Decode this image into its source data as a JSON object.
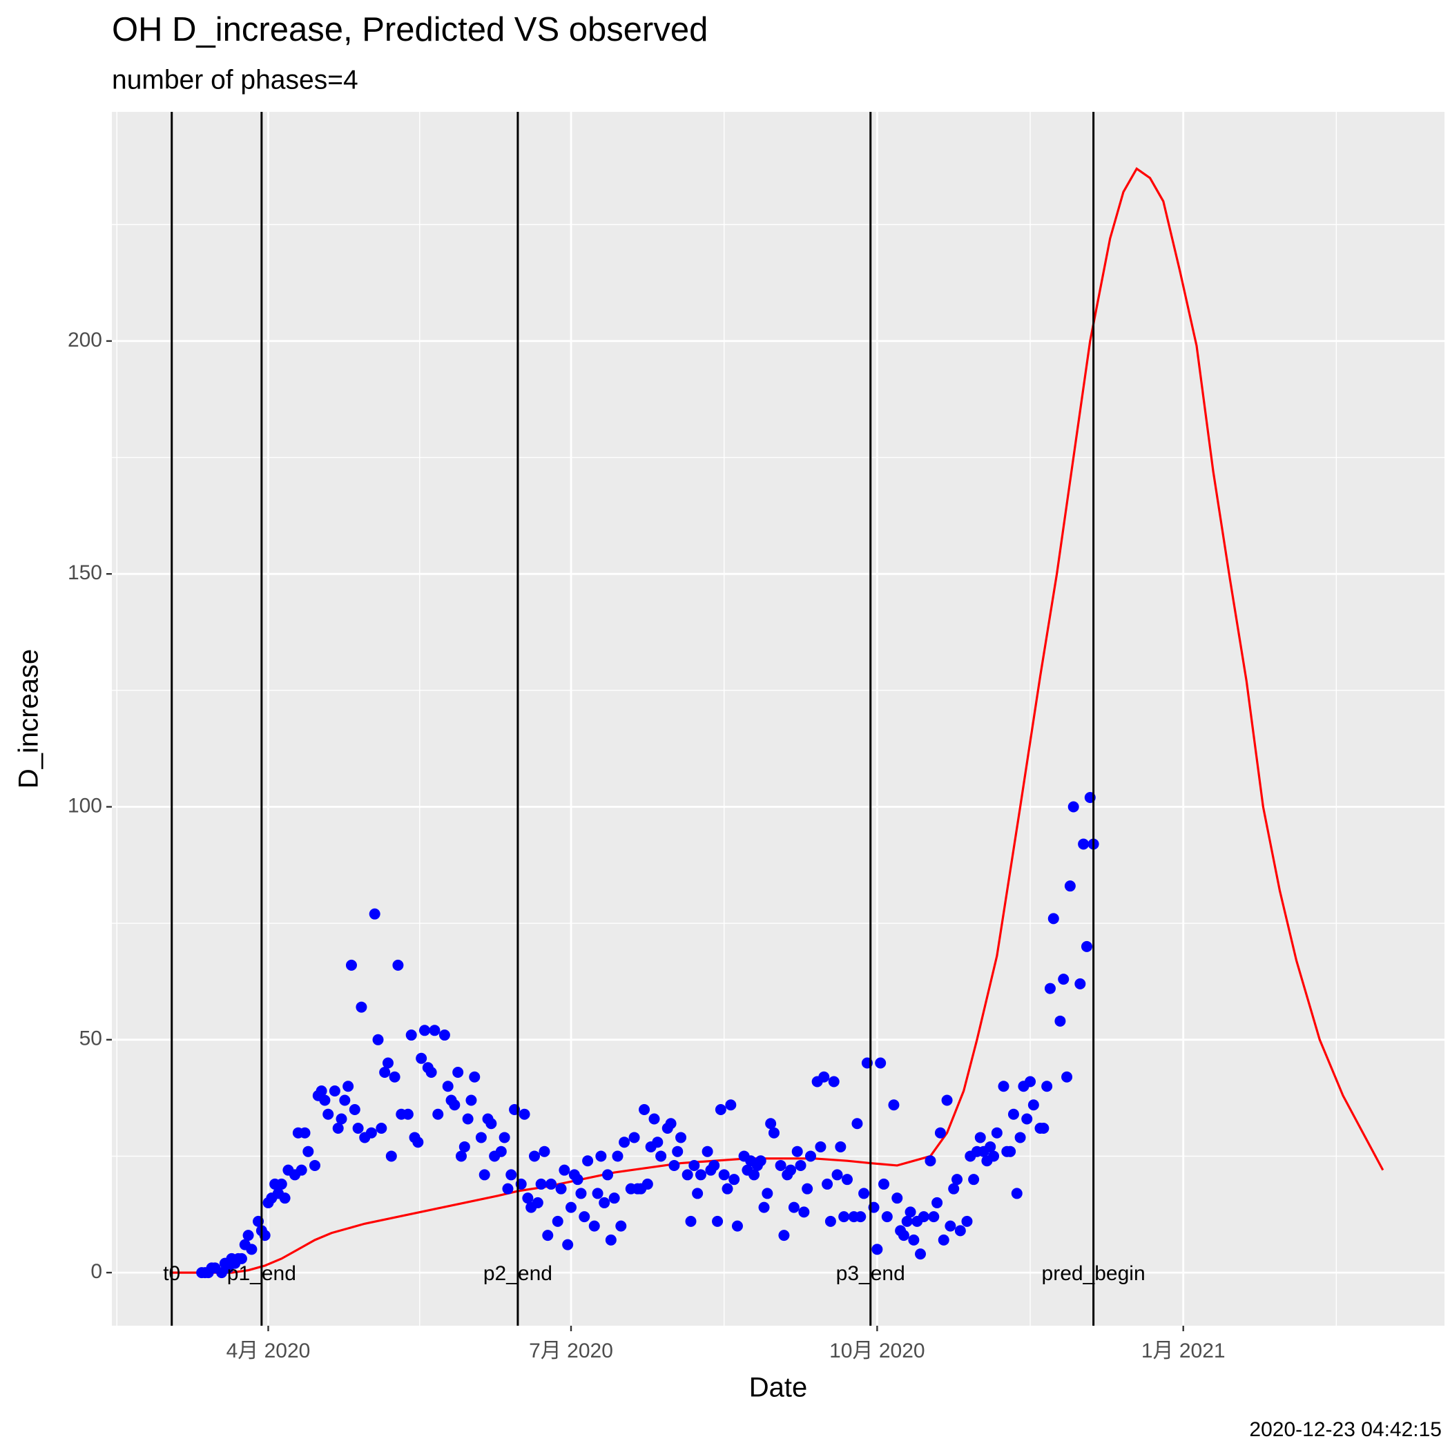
{
  "chart_data": {
    "type": "scatter",
    "title": "OH D_increase, Predicted VS observed",
    "subtitle": "number of phases=4",
    "x_label": "Date",
    "y_label": "D_increase",
    "caption": "2020-12-23 04:42:15",
    "xlim": [
      44,
      444.5
    ],
    "xticks": [
      {
        "value": 91,
        "label": "4月 2020"
      },
      {
        "value": 182,
        "label": "7月 2020"
      },
      {
        "value": 274,
        "label": "10月 2020"
      },
      {
        "value": 366,
        "label": "1月 2021"
      }
    ],
    "ylim": [
      -11.4,
      249.2
    ],
    "yticks": [
      0,
      50,
      100,
      150,
      200
    ],
    "grid": true,
    "points": {
      "color": "#0000ff",
      "x": [
        71,
        72,
        73,
        74,
        75,
        77,
        78,
        79,
        80,
        81,
        82,
        83,
        84,
        85,
        86,
        88,
        89,
        90,
        91,
        92,
        93,
        94,
        95,
        96,
        97,
        99,
        100,
        101,
        102,
        103,
        105,
        106,
        107,
        108,
        109,
        111,
        112,
        113,
        114,
        115,
        116,
        117,
        118,
        119,
        120,
        122,
        123,
        124,
        125,
        126,
        127,
        128,
        129,
        130,
        131,
        133,
        134,
        135,
        136,
        137,
        138,
        139,
        140,
        141,
        142,
        144,
        145,
        146,
        147,
        148,
        149,
        150,
        151,
        152,
        153,
        155,
        156,
        157,
        158,
        159,
        161,
        162,
        163,
        164,
        165,
        167,
        168,
        169,
        170,
        171,
        172,
        173,
        174,
        175,
        176,
        178,
        179,
        180,
        181,
        182,
        183,
        184,
        185,
        186,
        187,
        189,
        190,
        191,
        192,
        193,
        194,
        195,
        196,
        197,
        198,
        200,
        201,
        202,
        203,
        204,
        205,
        206,
        207,
        208,
        209,
        211,
        212,
        213,
        214,
        215,
        217,
        218,
        219,
        220,
        221,
        223,
        224,
        225,
        226,
        227,
        228,
        229,
        230,
        231,
        232,
        234,
        235,
        236,
        237,
        238,
        239,
        240,
        241,
        242,
        243,
        245,
        246,
        247,
        248,
        249,
        250,
        251,
        252,
        253,
        254,
        256,
        257,
        258,
        259,
        260,
        261,
        262,
        263,
        264,
        265,
        267,
        268,
        269,
        270,
        271,
        273,
        274,
        275,
        276,
        277,
        279,
        280,
        281,
        282,
        283,
        284,
        285,
        286,
        287,
        288,
        290,
        291,
        292,
        293,
        294,
        295,
        296,
        297,
        298,
        299,
        301,
        302,
        303,
        304,
        305,
        306,
        307,
        308,
        309,
        310,
        312,
        313,
        314,
        315,
        316,
        317,
        318,
        319,
        320,
        321,
        323,
        324,
        325,
        326,
        327,
        329,
        330,
        331,
        332,
        333,
        335,
        336,
        337,
        338,
        339
      ],
      "values": [
        0,
        0,
        0,
        1,
        1,
        0,
        2,
        1,
        3,
        2,
        3,
        3,
        6,
        8,
        5,
        11,
        9,
        8,
        15,
        16,
        19,
        17,
        19,
        16,
        22,
        21,
        30,
        22,
        30,
        26,
        23,
        38,
        39,
        37,
        34,
        39,
        31,
        33,
        37,
        40,
        66,
        35,
        31,
        57,
        29,
        30,
        77,
        50,
        31,
        43,
        45,
        25,
        42,
        66,
        34,
        34,
        51,
        29,
        28,
        46,
        52,
        44,
        43,
        52,
        34,
        51,
        40,
        37,
        36,
        43,
        25,
        27,
        33,
        37,
        42,
        29,
        21,
        33,
        32,
        25,
        26,
        29,
        18,
        21,
        35,
        19,
        34,
        16,
        14,
        25,
        15,
        19,
        26,
        8,
        19,
        11,
        18,
        22,
        6,
        14,
        21,
        20,
        17,
        12,
        24,
        10,
        17,
        25,
        15,
        21,
        7,
        16,
        25,
        10,
        28,
        18,
        29,
        18,
        18,
        35,
        19,
        27,
        33,
        28,
        25,
        31,
        32,
        23,
        26,
        29,
        21,
        11,
        23,
        17,
        21,
        26,
        22,
        23,
        11,
        35,
        21,
        18,
        36,
        20,
        10,
        25,
        22,
        24,
        21,
        23,
        24,
        14,
        17,
        32,
        30,
        23,
        8,
        21,
        22,
        14,
        26,
        23,
        13,
        18,
        25,
        41,
        27,
        42,
        19,
        11,
        41,
        21,
        27,
        12,
        20,
        12,
        32,
        12,
        17,
        45,
        14,
        5,
        45,
        19,
        12,
        36,
        16,
        9,
        8,
        11,
        13,
        7,
        11,
        4,
        12,
        24,
        12,
        15,
        30,
        7,
        37,
        10,
        18,
        20,
        9,
        11,
        25,
        20,
        26,
        29,
        26,
        24,
        27,
        25,
        30,
        40,
        26,
        26,
        34,
        17,
        29,
        40,
        33,
        41,
        36,
        31,
        31,
        40,
        61,
        76,
        54,
        63,
        42,
        83,
        100,
        62,
        92,
        70,
        102,
        92
      ]
    },
    "line": {
      "color": "#ff0000",
      "x": [
        62,
        70,
        80,
        85,
        90,
        95,
        100,
        105,
        110,
        115,
        120,
        130,
        140,
        150,
        160,
        166,
        175,
        185,
        195,
        205,
        215,
        225,
        235,
        245,
        255,
        265,
        272,
        280,
        285,
        290,
        295,
        300,
        304,
        310,
        317,
        323,
        328,
        333,
        338,
        344,
        348,
        352,
        356,
        360,
        365,
        370,
        375,
        380,
        385,
        390,
        395,
        400,
        407,
        414,
        420,
        426
      ],
      "values": [
        0,
        0,
        0,
        0.5,
        1.5,
        3,
        5,
        7,
        8.5,
        9.5,
        10.5,
        12,
        13.5,
        15,
        16.5,
        17.5,
        18.5,
        20,
        21.5,
        22.5,
        23.5,
        24,
        24.5,
        24.5,
        24.5,
        24,
        23.5,
        23,
        24,
        25,
        30,
        39,
        50,
        68,
        100,
        128,
        150,
        175,
        200,
        222,
        232,
        237,
        235,
        230,
        215,
        199,
        172,
        149,
        127,
        100,
        82,
        67,
        50,
        38,
        30,
        22
      ]
    },
    "vlines": [
      {
        "label": "t0",
        "x": 62
      },
      {
        "label": "p1_end",
        "x": 89
      },
      {
        "label": "p2_end",
        "x": 166
      },
      {
        "label": "p3_end",
        "x": 272
      },
      {
        "label": "pred_begin",
        "x": 339
      }
    ]
  }
}
